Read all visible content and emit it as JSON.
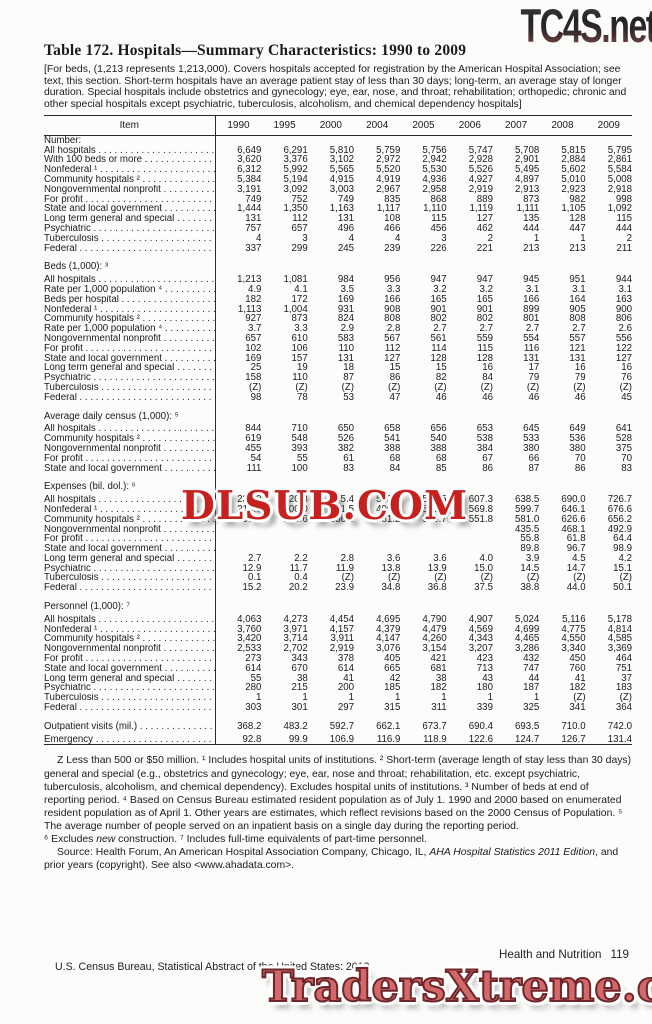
{
  "watermarks": {
    "top": "TC4S.net",
    "middle": "DLSUB.COM",
    "bottom": "TradersXtreme.com"
  },
  "header": {
    "title": "Table 172. Hospitals—Summary Characteristics: 1990 to 2009",
    "note": "[For beds, (1,213 represents 1,213,000). Covers hospitals accepted for registration by the American Hospital Association; see text, this section. Short-term hospitals have an average patient stay of less than 30 days; long-term, an average stay of longer duration. Special hospitals include obstetrics and gynecology; eye, ear, nose, and throat; rehabilitation; orthopedic; chronic and other special hospitals except psychiatric, tuberculosis, alcoholism, and chemical dependency hospitals]"
  },
  "table": {
    "item_header": "Item",
    "years": [
      "1990",
      "1995",
      "2000",
      "2004",
      "2005",
      "2006",
      "2007",
      "2008",
      "2009"
    ],
    "sections": [
      {
        "header": "Number:",
        "rows": [
          {
            "label": "All hospitals",
            "indent": 1,
            "values": [
              "6,649",
              "6,291",
              "5,810",
              "5,759",
              "5,756",
              "5,747",
              "5,708",
              "5,815",
              "5,795"
            ]
          },
          {
            "label": "With 100 beds or more",
            "indent": 2,
            "values": [
              "3,620",
              "3,376",
              "3,102",
              "2,972",
              "2,942",
              "2,928",
              "2,901",
              "2,884",
              "2,861"
            ]
          },
          {
            "label": "Nonfederal ¹",
            "indent": 1,
            "values": [
              "6,312",
              "5,992",
              "5,565",
              "5,520",
              "5,530",
              "5,526",
              "5,495",
              "5,602",
              "5,584"
            ]
          },
          {
            "label": "Community hospitals ²",
            "indent": 2,
            "values": [
              "5,384",
              "5,194",
              "4,915",
              "4,919",
              "4,936",
              "4,927",
              "4,897",
              "5,010",
              "5,008"
            ]
          },
          {
            "label": "Nongovernmental nonprofit",
            "indent": 3,
            "values": [
              "3,191",
              "3,092",
              "3,003",
              "2,967",
              "2,958",
              "2,919",
              "2,913",
              "2,923",
              "2,918"
            ]
          },
          {
            "label": "For profit",
            "indent": 3,
            "values": [
              "749",
              "752",
              "749",
              "835",
              "868",
              "889",
              "873",
              "982",
              "998"
            ]
          },
          {
            "label": "State and local government",
            "indent": 3,
            "values": [
              "1,444",
              "1,350",
              "1,163",
              "1,117",
              "1,110",
              "1,119",
              "1,111",
              "1,105",
              "1,092"
            ]
          },
          {
            "label": "Long term general and special",
            "indent": 2,
            "values": [
              "131",
              "112",
              "131",
              "108",
              "115",
              "127",
              "135",
              "128",
              "115"
            ]
          },
          {
            "label": "Psychiatric",
            "indent": 2,
            "values": [
              "757",
              "657",
              "496",
              "466",
              "456",
              "462",
              "444",
              "447",
              "444"
            ]
          },
          {
            "label": "Tuberculosis",
            "indent": 2,
            "values": [
              "4",
              "3",
              "4",
              "4",
              "3",
              "2",
              "1",
              "1",
              "2"
            ]
          },
          {
            "label": "Federal",
            "indent": 1,
            "values": [
              "337",
              "299",
              "245",
              "239",
              "226",
              "221",
              "213",
              "213",
              "211"
            ]
          }
        ]
      },
      {
        "header": "Beds (1,000): ³",
        "rows": [
          {
            "label": "All hospitals",
            "indent": 1,
            "values": [
              "1,213",
              "1,081",
              "984",
              "956",
              "947",
              "947",
              "945",
              "951",
              "944"
            ]
          },
          {
            "label": "Rate per 1,000 population ⁴",
            "indent": 2,
            "values": [
              "4.9",
              "4.1",
              "3.5",
              "3.3",
              "3.2",
              "3.2",
              "3.1",
              "3.1",
              "3.1"
            ]
          },
          {
            "label": "Beds per hospital",
            "indent": 2,
            "values": [
              "182",
              "172",
              "169",
              "166",
              "165",
              "165",
              "166",
              "164",
              "163"
            ]
          },
          {
            "label": "Nonfederal ¹",
            "indent": 1,
            "values": [
              "1,113",
              "1,004",
              "931",
              "908",
              "901",
              "901",
              "899",
              "905",
              "900"
            ]
          },
          {
            "label": "Community hospitals ²",
            "indent": 2,
            "values": [
              "927",
              "873",
              "824",
              "808",
              "802",
              "802",
              "801",
              "808",
              "806"
            ]
          },
          {
            "label": "Rate per 1,000 population ⁴",
            "indent": 3,
            "values": [
              "3.7",
              "3.3",
              "2.9",
              "2.8",
              "2.7",
              "2.7",
              "2.7",
              "2.7",
              "2.6"
            ]
          },
          {
            "label": "Nongovernmental nonprofit",
            "indent": 3,
            "values": [
              "657",
              "610",
              "583",
              "567",
              "561",
              "559",
              "554",
              "557",
              "556"
            ]
          },
          {
            "label": "For profit",
            "indent": 3,
            "values": [
              "102",
              "106",
              "110",
              "112",
              "114",
              "115",
              "116",
              "121",
              "122"
            ]
          },
          {
            "label": "State and local government",
            "indent": 3,
            "values": [
              "169",
              "157",
              "131",
              "127",
              "128",
              "128",
              "131",
              "131",
              "127"
            ]
          },
          {
            "label": "Long term general and special",
            "indent": 2,
            "values": [
              "25",
              "19",
              "18",
              "15",
              "15",
              "16",
              "17",
              "16",
              "16"
            ]
          },
          {
            "label": "Psychiatric",
            "indent": 2,
            "values": [
              "158",
              "110",
              "87",
              "86",
              "82",
              "84",
              "79",
              "79",
              "76"
            ]
          },
          {
            "label": "Tuberculosis",
            "indent": 2,
            "values": [
              "(Z)",
              "(Z)",
              "(Z)",
              "(Z)",
              "(Z)",
              "(Z)",
              "(Z)",
              "(Z)",
              "(Z)"
            ]
          },
          {
            "label": "Federal",
            "indent": 1,
            "values": [
              "98",
              "78",
              "53",
              "47",
              "46",
              "46",
              "46",
              "46",
              "45"
            ]
          }
        ]
      },
      {
        "header": "Average daily census (1,000): ⁵",
        "rows": [
          {
            "label": "All hospitals",
            "indent": 1,
            "values": [
              "844",
              "710",
              "650",
              "658",
              "656",
              "653",
              "645",
              "649",
              "641"
            ]
          },
          {
            "label": "Community hospitals ²",
            "indent": 2,
            "values": [
              "619",
              "548",
              "526",
              "541",
              "540",
              "538",
              "533",
              "536",
              "528"
            ]
          },
          {
            "label": "Nongovernmental nonprofit",
            "indent": 3,
            "values": [
              "455",
              "393",
              "382",
              "388",
              "388",
              "384",
              "380",
              "380",
              "375"
            ]
          },
          {
            "label": "For profit",
            "indent": 3,
            "values": [
              "54",
              "55",
              "61",
              "68",
              "68",
              "67",
              "66",
              "70",
              "70"
            ]
          },
          {
            "label": "State and local government",
            "indent": 3,
            "values": [
              "111",
              "100",
              "83",
              "84",
              "85",
              "86",
              "87",
              "86",
              "83"
            ]
          }
        ]
      },
      {
        "header": "Expenses (bil. dol.): ⁶",
        "rows": [
          {
            "label": "All hospitals",
            "indent": 1,
            "values": [
              "234.9",
              "320.3",
              "395.4",
              "533.8",
              "570.5",
              "607.3",
              "638.5",
              "690.0",
              "726.7"
            ]
          },
          {
            "label": "Nonfederal ¹",
            "indent": 1,
            "values": [
              "219.6",
              "300.0",
              "371.5",
              "499.0",
              "533.7",
              "569.8",
              "599.7",
              "646.1",
              "676.6"
            ]
          },
          {
            "label": "Community hospitals ²",
            "indent": 2,
            "values": [
              "203.7",
              "285.6",
              "356.6",
              "481.2",
              "515.7",
              "551.8",
              "581.0",
              "626.6",
              "656.2"
            ]
          },
          {
            "label": "Nongovernmental nonprofit",
            "indent": 3,
            "values": [
              "",
              "",
              "",
              "",
              "",
              "",
              "435.5",
              "468.1",
              "492.9"
            ]
          },
          {
            "label": "For profit",
            "indent": 3,
            "values": [
              "",
              "",
              "",
              "",
              "",
              "",
              "55.8",
              "61.8",
              "64.4"
            ]
          },
          {
            "label": "State and local government",
            "indent": 3,
            "values": [
              "",
              "",
              "",
              "",
              "",
              "",
              "89.8",
              "96.7",
              "98.9"
            ]
          },
          {
            "label": "Long term general and special",
            "indent": 2,
            "values": [
              "2.7",
              "2.2",
              "2.8",
              "3.6",
              "3.6",
              "4.0",
              "3.9",
              "4.5",
              "4.2"
            ]
          },
          {
            "label": "Psychiatric",
            "indent": 2,
            "values": [
              "12.9",
              "11.7",
              "11.9",
              "13.8",
              "13.9",
              "15.0",
              "14.5",
              "14.7",
              "15.1"
            ]
          },
          {
            "label": "Tuberculosis",
            "indent": 2,
            "values": [
              "0.1",
              "0.4",
              "(Z)",
              "(Z)",
              "(Z)",
              "(Z)",
              "(Z)",
              "(Z)",
              "(Z)"
            ]
          },
          {
            "label": "Federal",
            "indent": 1,
            "values": [
              "15.2",
              "20.2",
              "23.9",
              "34.8",
              "36.8",
              "37.5",
              "38.8",
              "44.0",
              "50.1"
            ]
          }
        ]
      },
      {
        "header": "Personnel (1,000): ⁷",
        "rows": [
          {
            "label": "All hospitals",
            "indent": 1,
            "values": [
              "4,063",
              "4,273",
              "4,454",
              "4,695",
              "4,790",
              "4,907",
              "5,024",
              "5,116",
              "5,178"
            ]
          },
          {
            "label": "Nonfederal ¹",
            "indent": 1,
            "values": [
              "3,760",
              "3,971",
              "4,157",
              "4,379",
              "4,479",
              "4,569",
              "4,699",
              "4,775",
              "4,814"
            ]
          },
          {
            "label": "Community hospitals ²",
            "indent": 2,
            "values": [
              "3,420",
              "3,714",
              "3,911",
              "4,147",
              "4,260",
              "4,343",
              "4,465",
              "4,550",
              "4,585"
            ]
          },
          {
            "label": "Nongovernmental nonprofit",
            "indent": 3,
            "values": [
              "2,533",
              "2,702",
              "2,919",
              "3,076",
              "3,154",
              "3,207",
              "3,286",
              "3,340",
              "3,369"
            ]
          },
          {
            "label": "For profit",
            "indent": 3,
            "values": [
              "273",
              "343",
              "378",
              "405",
              "421",
              "423",
              "432",
              "450",
              "464"
            ]
          },
          {
            "label": "State and local government",
            "indent": 3,
            "values": [
              "614",
              "670",
              "614",
              "665",
              "681",
              "713",
              "747",
              "760",
              "751"
            ]
          },
          {
            "label": "Long term general and special",
            "indent": 2,
            "values": [
              "55",
              "38",
              "41",
              "42",
              "38",
              "43",
              "44",
              "41",
              "37"
            ]
          },
          {
            "label": "Psychiatric",
            "indent": 2,
            "values": [
              "280",
              "215",
              "200",
              "185",
              "182",
              "180",
              "187",
              "182",
              "183"
            ]
          },
          {
            "label": "Tuberculosis",
            "indent": 2,
            "values": [
              "1",
              "1",
              "1",
              "1",
              "1",
              "1",
              "1",
              "(Z)",
              "(Z)"
            ]
          },
          {
            "label": "Federal",
            "indent": 1,
            "values": [
              "303",
              "301",
              "297",
              "315",
              "311",
              "339",
              "325",
              "341",
              "364"
            ]
          }
        ]
      },
      {
        "header": "",
        "rows": [
          {
            "label": "Outpatient visits (mil.)",
            "indent": 1,
            "values": [
              "368.2",
              "483.2",
              "592.7",
              "662.1",
              "673.7",
              "690.4",
              "693.5",
              "710.0",
              "742.0"
            ]
          },
          {
            "label": "Emergency",
            "indent": 2,
            "values": [
              "92.8",
              "99.9",
              "106.9",
              "116.9",
              "118.9",
              "122.6",
              "124.7",
              "126.7",
              "131.4"
            ]
          }
        ]
      }
    ]
  },
  "footnotes": {
    "p1": "Z Less than 500 or $50 million. ¹ Includes hospital units of institutions. ² Short-term (average length of stay less than 30 days) general and special (e.g., obstetrics and gynecology; eye, ear, nose and throat; rehabilitation, etc. except psychiatric, tuberculosis, alcoholism, and chemical dependency). Excludes hospital units of institutions. ³ Number of beds at end of reporting period. ⁴ Based on Census Bureau estimated resident population as of July 1. 1990 and 2000 based on enumerated resident population as of April 1. Other years are estimates, which reflect revisions based on the 2000 Census of Population. ⁵ The average number of people served on an inpatient basis on a single day during the reporting period.",
    "p2_pre": "⁶ Excludes ",
    "p2_italic": "new",
    "p2_post": " construction. ⁷ Includes full-time equivalents of part-time personnel.",
    "p3_pre": "Source: Health Forum, An American Hospital Association Company, Chicago, IL, ",
    "p3_italic": "AHA Hospital Statistics 2011 Edition",
    "p3_post": ", and prior years (copyright). See also <www.ahadata.com>."
  },
  "footer": {
    "left": "U.S. Census Bureau, Statistical Abstract of the United States: 2012",
    "section": "Health and Nutrition",
    "page": "119"
  }
}
